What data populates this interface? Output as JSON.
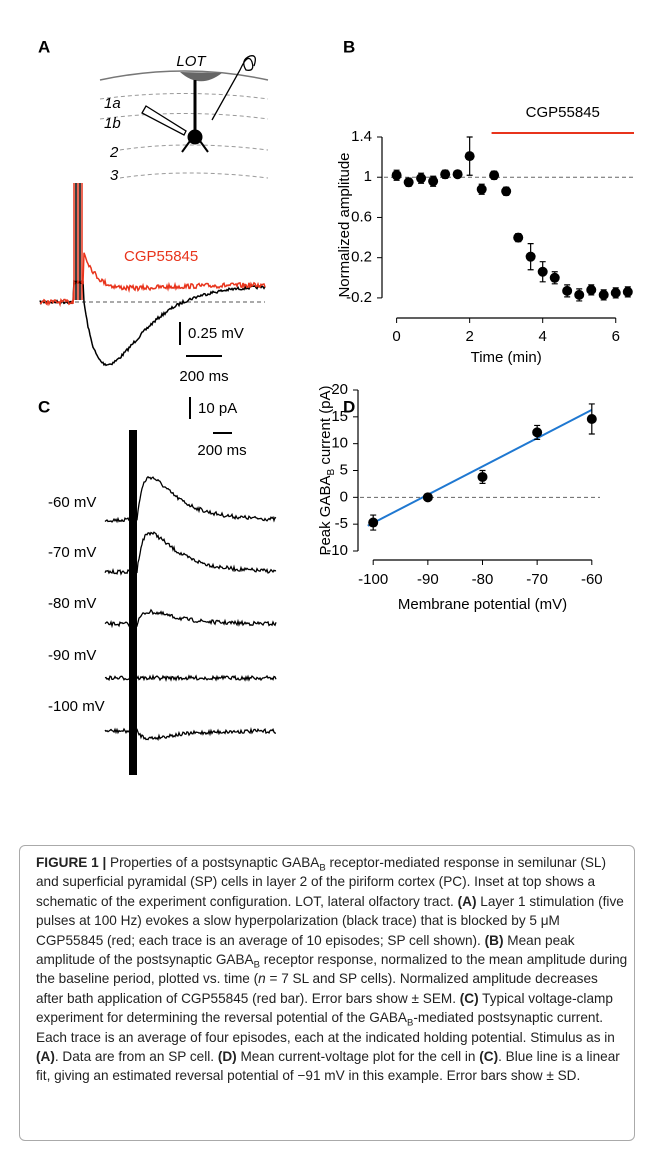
{
  "panel_a": {
    "letter": "A",
    "lot": "LOT",
    "layers": [
      "1a",
      "1b",
      "2",
      "3"
    ],
    "trace_label": "CGP55845",
    "scale_y": "0.25 mV",
    "scale_x": "200 ms"
  },
  "panel_c": {
    "letter": "C",
    "scale_y": "10 pA",
    "scale_x": "200 ms",
    "traces": [
      "-60 mV",
      "-70 mV",
      "-80 mV",
      "-90 mV",
      "-100 mV"
    ]
  },
  "chart_data": [
    {
      "type": "scatter",
      "panel": "B",
      "xlabel": "Time (min)",
      "ylabel": "Normalized amplitude",
      "x": [
        0,
        0.33,
        0.67,
        1,
        1.33,
        1.67,
        2,
        2.33,
        2.67,
        3,
        3.33,
        3.67,
        4,
        4.33,
        4.67,
        5,
        5.33,
        5.67,
        6,
        6.33
      ],
      "series": [
        {
          "color": "#000000",
          "values": [
            1.02,
            0.95,
            0.99,
            0.96,
            1.03,
            1.03,
            1.21,
            0.88,
            1.02,
            0.86,
            0.4,
            0.21,
            0.06,
            0.0,
            -0.13,
            -0.17,
            -0.12,
            -0.17,
            -0.15,
            -0.14
          ],
          "errors": [
            0.05,
            0.04,
            0.05,
            0.05,
            0.04,
            0.02,
            0.19,
            0.05,
            0.04,
            0.04,
            0.04,
            0.13,
            0.1,
            0.06,
            0.06,
            0.06,
            0.05,
            0.05,
            0.05,
            0.05
          ]
        }
      ],
      "xlim": [
        -0.4,
        6.5
      ],
      "ylim": [
        -0.35,
        1.4
      ],
      "xticks": [
        0,
        2,
        4,
        6
      ],
      "yticks": [
        1.4,
        1,
        0.6,
        0.2,
        -0.2
      ],
      "reference_line": 1,
      "bar": {
        "label": "CGP55845",
        "start": 2.6,
        "end": 6.5,
        "color": "#e8341c"
      }
    },
    {
      "type": "scatter",
      "panel": "D",
      "xlabel": "Membrane potential (mV)",
      "ylabel": "Peak GABA",
      "ylabel_sub": "B",
      "ylabel_end": " current (pA)",
      "x": [
        -100,
        -90,
        -80,
        -70,
        -60
      ],
      "series": [
        {
          "color": "#000000",
          "values": [
            -4.7,
            0,
            3.8,
            12.1,
            14.6
          ],
          "errors": [
            1.4,
            0.3,
            1.2,
            1.3,
            2.8
          ]
        }
      ],
      "xlim": [
        -101.5,
        -58.5
      ],
      "ylim": [
        -10,
        20
      ],
      "xticks": [
        -100,
        -90,
        -80,
        -70,
        -60
      ],
      "yticks": [
        20,
        15,
        10,
        5,
        0,
        -5,
        -10
      ],
      "reference_line": 0,
      "fit": {
        "x": [
          -101,
          -60
        ],
        "values": [
          -5.3,
          16.3
        ],
        "color": "#1f78d1"
      }
    }
  ],
  "caption": [
    {
      "bold": "FIGURE 1 |"
    },
    " Properties of a postsynaptic GABA",
    {
      "sub": "B"
    },
    " receptor-mediated response in semilunar (SL) and superficial pyramidal (SP) cells in layer 2 of the piriform cortex (PC). Inset at top shows a schematic of the experiment configuration. LOT, lateral olfactory tract. ",
    {
      "bold": "(A)"
    },
    " Layer 1 stimulation (five pulses at 100 Hz) evokes a slow hyperpolarization (black trace) that is blocked by 5 μM CGP55845 (red; each trace is an average of 10 episodes; SP cell shown). ",
    {
      "bold": "(B)"
    },
    " Mean peak amplitude of the postsynaptic GABA",
    {
      "sub": "B"
    },
    " receptor response, normalized to the mean amplitude during the baseline period, plotted vs. time (",
    {
      "italic": "n"
    },
    " = 7 SL and SP cells). Normalized amplitude decreases after bath application of CGP55845 (red bar). Error bars show ± SEM. ",
    {
      "bold": "(C)"
    },
    " Typical voltage-clamp experiment for determining the reversal potential of the GABA",
    {
      "sub": "B"
    },
    "-mediated postsynaptic current. Each trace is an average of four episodes, each at the indicated holding potential. Stimulus as in ",
    {
      "bold": "(A)"
    },
    ". Data are from an SP cell. ",
    {
      "bold": "(D)"
    },
    " Mean current-voltage plot for the cell in ",
    {
      "bold": "(C)"
    },
    ". Blue line is a linear fit, giving an estimated reversal potential of −91 mV in this example. Error bars show ± SD."
  ]
}
